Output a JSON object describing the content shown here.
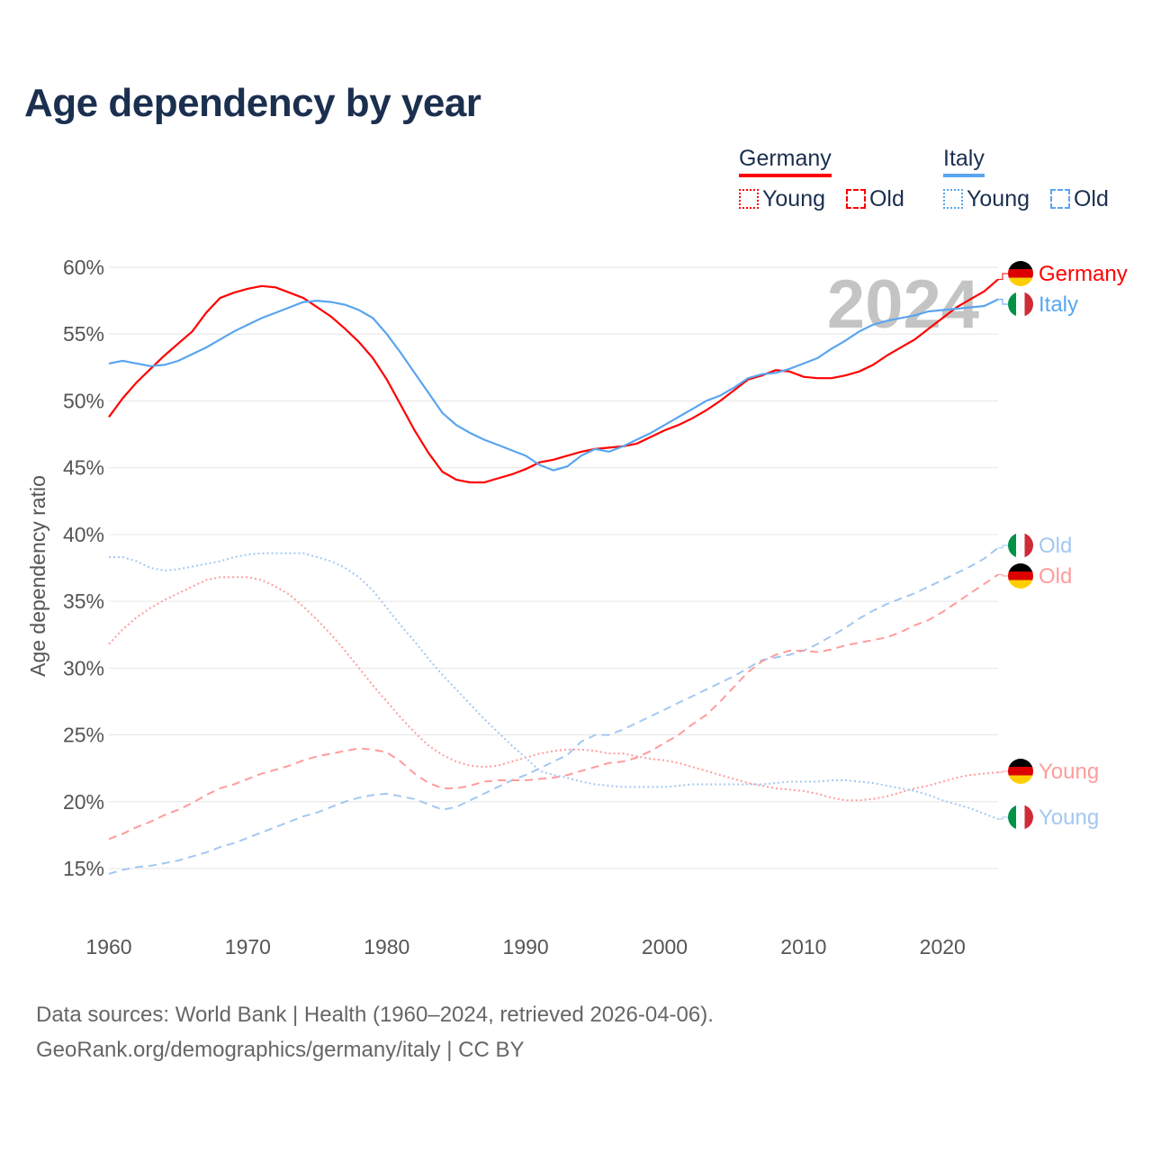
{
  "title": "Age dependency by year",
  "legend": {
    "groups": [
      {
        "name": "Germany",
        "color": "#ff0000",
        "young": "Young",
        "old": "Old"
      },
      {
        "name": "Italy",
        "color": "#5aa5f0",
        "young": "Young",
        "old": "Old"
      }
    ]
  },
  "year_watermark": "2024",
  "footer": {
    "line1": "Data sources: World Bank | Health (1960–2024, retrieved 2026-04-06).",
    "line2": "GeoRank.org/demographics/germany/italy | CC BY"
  },
  "chart_data": {
    "type": "line",
    "title": "Age dependency by year",
    "xlabel": "",
    "ylabel": "Age dependency ratio",
    "xlim": [
      1960,
      2024
    ],
    "ylim": [
      15,
      60
    ],
    "x_ticks": [
      "1960",
      "1970",
      "1980",
      "1990",
      "2000",
      "2010",
      "2020"
    ],
    "y_ticks": [
      "15%",
      "20%",
      "25%",
      "30%",
      "35%",
      "40%",
      "45%",
      "50%",
      "55%",
      "60%"
    ],
    "grid": true,
    "legend_position": "top-right",
    "x_start": 1960,
    "series": [
      {
        "name": "Germany",
        "label": "Germany",
        "country": "germany",
        "style": "solid",
        "color": "#ff0000",
        "values": [
          48.8,
          50.2,
          51.4,
          52.4,
          53.4,
          54.3,
          55.2,
          56.6,
          57.7,
          58.1,
          58.4,
          58.6,
          58.5,
          58.1,
          57.7,
          57.0,
          56.3,
          55.4,
          54.4,
          53.2,
          51.6,
          49.7,
          47.8,
          46.1,
          44.7,
          44.1,
          43.9,
          43.9,
          44.2,
          44.5,
          44.9,
          45.4,
          45.6,
          45.9,
          46.2,
          46.4,
          46.5,
          46.6,
          46.8,
          47.3,
          47.8,
          48.2,
          48.7,
          49.3,
          50.0,
          50.8,
          51.6,
          51.9,
          52.3,
          52.2,
          51.8,
          51.7,
          51.7,
          51.9,
          52.2,
          52.7,
          53.4,
          54.0,
          54.6,
          55.4,
          56.2,
          57.0,
          57.6,
          58.2,
          59.1
        ]
      },
      {
        "name": "Italy",
        "label": "Italy",
        "country": "italy",
        "style": "solid",
        "color": "#5aa5f0",
        "values": [
          52.8,
          53.0,
          52.8,
          52.6,
          52.7,
          53.0,
          53.5,
          54.0,
          54.6,
          55.2,
          55.7,
          56.2,
          56.6,
          57.0,
          57.4,
          57.5,
          57.4,
          57.2,
          56.8,
          56.2,
          55.0,
          53.6,
          52.1,
          50.6,
          49.1,
          48.2,
          47.6,
          47.1,
          46.7,
          46.3,
          45.9,
          45.2,
          44.8,
          45.1,
          45.9,
          46.4,
          46.2,
          46.6,
          47.1,
          47.6,
          48.2,
          48.8,
          49.4,
          50.0,
          50.4,
          51.0,
          51.7,
          52.0,
          52.1,
          52.4,
          52.8,
          53.2,
          53.9,
          54.5,
          55.2,
          55.7,
          56.0,
          56.2,
          56.4,
          56.7,
          56.8,
          56.9,
          57.0,
          57.1,
          57.6
        ]
      },
      {
        "name": "Italy Old",
        "label": "Old",
        "country": "italy",
        "style": "dashed",
        "color": "#a3c8f0",
        "values": [
          14.6,
          14.9,
          15.1,
          15.2,
          15.4,
          15.6,
          15.9,
          16.2,
          16.6,
          16.9,
          17.3,
          17.7,
          18.1,
          18.5,
          18.9,
          19.2,
          19.6,
          20.0,
          20.3,
          20.5,
          20.6,
          20.4,
          20.2,
          19.8,
          19.4,
          19.6,
          20.1,
          20.6,
          21.1,
          21.6,
          22.0,
          22.5,
          23.0,
          23.5,
          24.5,
          25.0,
          25.0,
          25.4,
          25.9,
          26.4,
          26.9,
          27.4,
          27.9,
          28.4,
          28.9,
          29.4,
          30.0,
          30.6,
          30.8,
          31.0,
          31.3,
          31.8,
          32.4,
          33.0,
          33.7,
          34.3,
          34.8,
          35.2,
          35.6,
          36.1,
          36.6,
          37.1,
          37.6,
          38.2,
          39.0
        ]
      },
      {
        "name": "Germany Old",
        "label": "Old",
        "country": "germany",
        "style": "dashed",
        "color": "#ff9c9c",
        "values": [
          17.2,
          17.6,
          18.1,
          18.5,
          19.0,
          19.4,
          19.9,
          20.5,
          21.0,
          21.3,
          21.7,
          22.1,
          22.4,
          22.7,
          23.1,
          23.4,
          23.6,
          23.8,
          24.0,
          23.9,
          23.7,
          23.0,
          22.1,
          21.4,
          21.0,
          21.0,
          21.2,
          21.5,
          21.6,
          21.6,
          21.6,
          21.7,
          21.8,
          22.0,
          22.3,
          22.6,
          22.9,
          23.0,
          23.3,
          23.8,
          24.4,
          25.0,
          25.8,
          26.5,
          27.5,
          28.6,
          29.7,
          30.5,
          31.0,
          31.3,
          31.3,
          31.2,
          31.4,
          31.7,
          31.9,
          32.1,
          32.3,
          32.7,
          33.2,
          33.6,
          34.2,
          34.9,
          35.6,
          36.3,
          37.0
        ]
      },
      {
        "name": "Germany Young",
        "label": "Young",
        "country": "germany",
        "style": "dotted",
        "color": "#ff9c9c",
        "values": [
          31.8,
          32.9,
          33.8,
          34.5,
          35.1,
          35.6,
          36.1,
          36.6,
          36.8,
          36.8,
          36.8,
          36.6,
          36.1,
          35.5,
          34.6,
          33.6,
          32.5,
          31.3,
          30.0,
          28.7,
          27.5,
          26.3,
          25.2,
          24.2,
          23.5,
          23.0,
          22.7,
          22.6,
          22.7,
          23.0,
          23.3,
          23.6,
          23.8,
          23.9,
          23.9,
          23.8,
          23.6,
          23.6,
          23.4,
          23.2,
          23.1,
          22.9,
          22.6,
          22.3,
          22.0,
          21.7,
          21.4,
          21.2,
          21.0,
          20.9,
          20.8,
          20.6,
          20.3,
          20.1,
          20.1,
          20.2,
          20.4,
          20.7,
          21.0,
          21.2,
          21.5,
          21.8,
          22.0,
          22.1,
          22.2
        ]
      },
      {
        "name": "Italy Young",
        "label": "Young",
        "country": "italy",
        "style": "dotted",
        "color": "#a3c8f0",
        "values": [
          38.3,
          38.3,
          38.0,
          37.5,
          37.3,
          37.4,
          37.6,
          37.8,
          38.0,
          38.3,
          38.5,
          38.6,
          38.6,
          38.6,
          38.6,
          38.3,
          38.0,
          37.5,
          36.8,
          35.8,
          34.5,
          33.2,
          32.0,
          30.7,
          29.5,
          28.4,
          27.3,
          26.2,
          25.2,
          24.2,
          23.3,
          22.3,
          22.0,
          21.8,
          21.5,
          21.3,
          21.2,
          21.1,
          21.1,
          21.1,
          21.1,
          21.2,
          21.3,
          21.3,
          21.3,
          21.3,
          21.3,
          21.3,
          21.4,
          21.5,
          21.5,
          21.5,
          21.6,
          21.6,
          21.5,
          21.4,
          21.2,
          21.0,
          20.8,
          20.5,
          20.1,
          19.8,
          19.5,
          19.1,
          18.7
        ]
      }
    ]
  }
}
